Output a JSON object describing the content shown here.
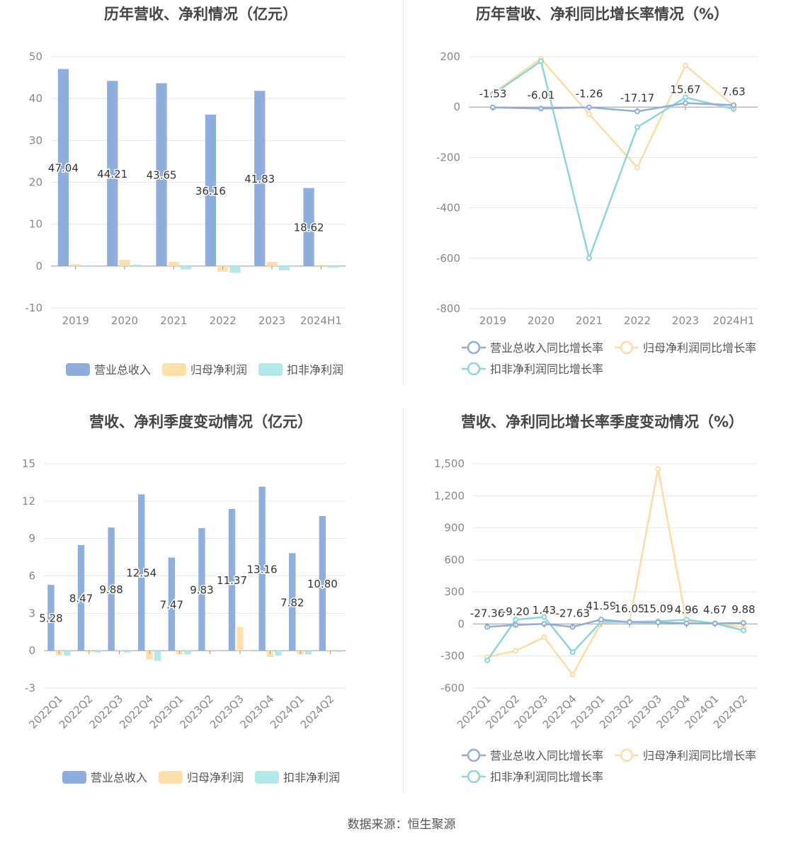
{
  "colors": {
    "revenue": "#8eaedd",
    "parent": "#ffe0aa",
    "deducted": "#b3e8ea",
    "revenue_line": "#8eaedd",
    "parent_line": "#ffdca1",
    "deducted_line": "#8ad6d9"
  },
  "source": "数据来源：恒生聚源",
  "chart_data": [
    {
      "type": "bar",
      "title": "历年营收、净利情况（亿元）",
      "categories": [
        "2019",
        "2020",
        "2021",
        "2022",
        "2023",
        "2024H1"
      ],
      "ylim": [
        -10,
        50
      ],
      "yticks": [
        "-10",
        "0",
        "10",
        "20",
        "30",
        "40",
        "50"
      ],
      "series": [
        {
          "name": "营业总收入",
          "values": [
            47.04,
            44.21,
            43.65,
            36.16,
            41.83,
            18.62
          ],
          "labels": [
            "47.04",
            "44.21",
            "43.65",
            "36.16",
            "41.83",
            "18.62"
          ]
        },
        {
          "name": "归母净利润",
          "values": [
            0.5,
            1.5,
            1.0,
            -1.4,
            1.0,
            -0.3
          ]
        },
        {
          "name": "扣非净利润",
          "values": [
            -0.2,
            0.3,
            -0.8,
            -1.6,
            -1.0,
            -0.4
          ]
        }
      ],
      "legend": "bottom"
    },
    {
      "type": "line",
      "title": "历年营收、净利同比增长率情况（%）",
      "categories": [
        "2019",
        "2020",
        "2021",
        "2022",
        "2023",
        "2024H1"
      ],
      "ylim": [
        -800,
        200
      ],
      "yticks": [
        "-800",
        "-600",
        "-400",
        "-200",
        "0",
        "200"
      ],
      "series": [
        {
          "name": "营业总收入同比增长率",
          "values": [
            -1.53,
            -6.01,
            -1.26,
            -17.17,
            15.67,
            7.63
          ],
          "labels": [
            "-1.53",
            "-6.01",
            "-1.26",
            "-17.17",
            "15.67",
            "7.63"
          ]
        },
        {
          "name": "归母净利润同比增长率",
          "values": [
            55,
            192,
            -28,
            -240,
            165,
            5
          ]
        },
        {
          "name": "扣非净利润同比增长率",
          "values": [
            50,
            182,
            -600,
            -80,
            38,
            -8
          ]
        }
      ],
      "legend": "bottom"
    },
    {
      "type": "bar",
      "title": "营收、净利季度变动情况（亿元）",
      "categories": [
        "2022Q1",
        "2022Q2",
        "2022Q3",
        "2022Q4",
        "2023Q1",
        "2023Q2",
        "2023Q3",
        "2023Q4",
        "2024Q1",
        "2024Q2"
      ],
      "ylim": [
        -3,
        15
      ],
      "yticks": [
        "-3",
        "0",
        "3",
        "6",
        "9",
        "12",
        "15"
      ],
      "series": [
        {
          "name": "营业总收入",
          "values": [
            5.28,
            8.47,
            9.88,
            12.54,
            7.47,
            9.83,
            11.37,
            13.16,
            7.82,
            10.8
          ],
          "labels": [
            "5.28",
            "8.47",
            "9.88",
            "12.54",
            "7.47",
            "9.83",
            "11.37",
            "13.16",
            "7.82",
            "10.80"
          ]
        },
        {
          "name": "归母净利润",
          "values": [
            -0.4,
            -0.1,
            -0.1,
            -0.7,
            -0.3,
            -0.1,
            1.9,
            -0.5,
            -0.3,
            -0.1
          ]
        },
        {
          "name": "扣非净利润",
          "values": [
            -0.4,
            -0.15,
            -0.15,
            -0.8,
            -0.3,
            -0.05,
            -0.05,
            -0.4,
            -0.3,
            -0.1
          ]
        }
      ],
      "legend": "bottom"
    },
    {
      "type": "line",
      "title": "营收、净利同比增长率季度变动情况（%）",
      "categories": [
        "2022Q1",
        "2022Q2",
        "2022Q3",
        "2022Q4",
        "2023Q1",
        "2023Q2",
        "2023Q3",
        "2023Q4",
        "2024Q1",
        "2024Q2"
      ],
      "ylim": [
        -600,
        1500
      ],
      "yticks": [
        "-600",
        "-300",
        "0",
        "300",
        "600",
        "900",
        "1,200",
        "1,500"
      ],
      "series": [
        {
          "name": "营业总收入同比增长率",
          "values": [
            -27.36,
            -9.2,
            1.43,
            -27.63,
            41.59,
            16.05,
            15.09,
            4.96,
            4.67,
            9.88
          ],
          "labels": [
            "-27.36",
            "-9.20",
            "1.43",
            "-27.63",
            "41.59",
            "16.05",
            "15.09",
            "4.96",
            "4.67",
            "9.88"
          ]
        },
        {
          "name": "归母净利润同比增长率",
          "values": [
            -310,
            -250,
            -125,
            -475,
            10,
            20,
            1450,
            20,
            5,
            -30
          ]
        },
        {
          "name": "扣非净利润同比增长率",
          "values": [
            -340,
            40,
            65,
            -265,
            20,
            20,
            25,
            40,
            5,
            -60
          ]
        }
      ],
      "legend": "bottom"
    }
  ]
}
